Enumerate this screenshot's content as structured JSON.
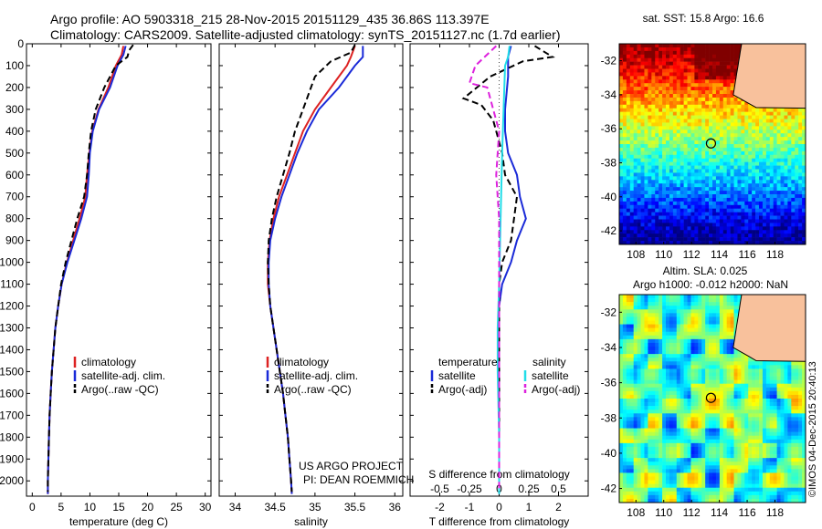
{
  "header": {
    "line1": "Argo profile: AO 5903318_215 28-Nov-2015 20151129_435 36.86S 113.397E",
    "line2": "Climatology: CARS2009. Satellite-adjusted climatology: synTS_20151127.nc (1.7d earlier)"
  },
  "colors": {
    "climatology": "#dd2222",
    "satellite": "#1a2ad8",
    "argo": "#000000",
    "sal_satellite": "#22dde8",
    "sal_argo": "#dd22dd",
    "land": "#f8c19c"
  },
  "credit": "©IMOS 04-Dec-2015 20:40:13",
  "project": {
    "line1": "US ARGO PROJECT",
    "line2": "PI: DEAN ROEMMICH"
  },
  "chart_data": [
    {
      "type": "line",
      "xlabel": "temperature (deg C)",
      "ylabel": "",
      "xlim": [
        -1,
        31
      ],
      "ylim": [
        2070,
        0
      ],
      "xticks": [
        "0",
        "5",
        "10",
        "15",
        "20",
        "25",
        "30"
      ],
      "yticks": [
        "0",
        "100",
        "200",
        "300",
        "400",
        "500",
        "600",
        "700",
        "800",
        "900",
        "1000",
        "1100",
        "1200",
        "1300",
        "1400",
        "1500",
        "1600",
        "1700",
        "1800",
        "1900",
        "2000"
      ],
      "legend": [
        "climatology",
        "satellite-adj. clim.",
        "Argo(..raw -QC)"
      ],
      "series": [
        {
          "name": "climatology",
          "style": "solid",
          "color": "#dd2222",
          "points": [
            [
              15.8,
              10
            ],
            [
              15.5,
              50
            ],
            [
              14.5,
              100
            ],
            [
              13.2,
              200
            ],
            [
              11.5,
              300
            ],
            [
              10.4,
              400
            ],
            [
              9.9,
              500
            ],
            [
              9.5,
              600
            ],
            [
              9.2,
              700
            ],
            [
              8.2,
              800
            ],
            [
              7.1,
              900
            ],
            [
              6.0,
              1000
            ],
            [
              5.1,
              1100
            ],
            [
              4.5,
              1200
            ],
            [
              4.0,
              1300
            ],
            [
              3.7,
              1400
            ],
            [
              3.4,
              1500
            ],
            [
              3.2,
              1600
            ],
            [
              3.0,
              1700
            ],
            [
              2.9,
              1800
            ],
            [
              2.8,
              1900
            ],
            [
              2.7,
              2000
            ],
            [
              2.7,
              2060
            ]
          ]
        },
        {
          "name": "satellite-adj. clim.",
          "style": "solid",
          "color": "#1a2ad8",
          "points": [
            [
              16.2,
              10
            ],
            [
              15.8,
              50
            ],
            [
              14.8,
              100
            ],
            [
              13.5,
              200
            ],
            [
              11.6,
              300
            ],
            [
              10.5,
              400
            ],
            [
              10.0,
              500
            ],
            [
              9.8,
              600
            ],
            [
              9.5,
              700
            ],
            [
              8.5,
              800
            ],
            [
              7.3,
              900
            ],
            [
              6.1,
              1000
            ],
            [
              5.1,
              1100
            ],
            [
              4.5,
              1200
            ],
            [
              4.0,
              1300
            ],
            [
              3.7,
              1400
            ],
            [
              3.4,
              1500
            ],
            [
              3.2,
              1600
            ],
            [
              3.0,
              1700
            ],
            [
              2.9,
              1800
            ],
            [
              2.8,
              1900
            ],
            [
              2.7,
              2000
            ],
            [
              2.7,
              2060
            ]
          ]
        },
        {
          "name": "Argo(..raw -QC)",
          "style": "dashed",
          "color": "#000000",
          "points": [
            [
              17.5,
              5
            ],
            [
              16.8,
              30
            ],
            [
              16.5,
              60
            ],
            [
              14.5,
              100
            ],
            [
              12.5,
              200
            ],
            [
              11.0,
              300
            ],
            [
              10.2,
              400
            ],
            [
              9.8,
              500
            ],
            [
              9.5,
              600
            ],
            [
              9.0,
              700
            ],
            [
              7.8,
              800
            ],
            [
              6.8,
              900
            ],
            [
              5.8,
              1000
            ],
            [
              5.0,
              1100
            ],
            [
              4.5,
              1200
            ],
            [
              4.0,
              1300
            ],
            [
              3.7,
              1400
            ],
            [
              3.4,
              1500
            ],
            [
              3.2,
              1600
            ],
            [
              3.0,
              1700
            ],
            [
              2.9,
              1800
            ],
            [
              2.8,
              1900
            ],
            [
              2.7,
              2000
            ],
            [
              2.7,
              2050
            ]
          ]
        }
      ]
    },
    {
      "type": "line",
      "xlabel": "salinity",
      "xlim": [
        33.8,
        36.1
      ],
      "ylim": [
        2070,
        0
      ],
      "xticks": [
        "34",
        "34.5",
        "35",
        "35.5",
        "36"
      ],
      "legend": [
        "climatology",
        "satellite-adj. clim.",
        "Argo(..raw -QC)"
      ],
      "series": [
        {
          "name": "climatology",
          "style": "solid",
          "color": "#dd2222",
          "points": [
            [
              35.5,
              10
            ],
            [
              35.45,
              60
            ],
            [
              35.4,
              100
            ],
            [
              35.2,
              200
            ],
            [
              35.0,
              300
            ],
            [
              34.85,
              400
            ],
            [
              34.75,
              500
            ],
            [
              34.65,
              600
            ],
            [
              34.55,
              700
            ],
            [
              34.48,
              800
            ],
            [
              34.43,
              900
            ],
            [
              34.41,
              1000
            ],
            [
              34.41,
              1100
            ],
            [
              34.44,
              1200
            ],
            [
              34.48,
              1300
            ],
            [
              34.52,
              1400
            ],
            [
              34.56,
              1500
            ],
            [
              34.6,
              1600
            ],
            [
              34.63,
              1700
            ],
            [
              34.66,
              1800
            ],
            [
              34.68,
              1900
            ],
            [
              34.7,
              2000
            ],
            [
              34.71,
              2060
            ]
          ]
        },
        {
          "name": "satellite-adj. clim.",
          "style": "solid",
          "color": "#1a2ad8",
          "points": [
            [
              35.6,
              10
            ],
            [
              35.6,
              60
            ],
            [
              35.5,
              100
            ],
            [
              35.3,
              200
            ],
            [
              35.05,
              300
            ],
            [
              34.9,
              400
            ],
            [
              34.78,
              500
            ],
            [
              34.68,
              600
            ],
            [
              34.58,
              700
            ],
            [
              34.5,
              800
            ],
            [
              34.44,
              900
            ],
            [
              34.42,
              1000
            ],
            [
              34.42,
              1100
            ],
            [
              34.44,
              1200
            ],
            [
              34.48,
              1300
            ],
            [
              34.52,
              1400
            ],
            [
              34.56,
              1500
            ],
            [
              34.6,
              1600
            ],
            [
              34.63,
              1700
            ],
            [
              34.66,
              1800
            ],
            [
              34.68,
              1900
            ],
            [
              34.7,
              2000
            ],
            [
              34.71,
              2060
            ]
          ]
        },
        {
          "name": "Argo(..raw -QC)",
          "style": "dashed",
          "color": "#000000",
          "points": [
            [
              35.5,
              5
            ],
            [
              35.45,
              40
            ],
            [
              35.2,
              80
            ],
            [
              35.0,
              150
            ],
            [
              34.95,
              200
            ],
            [
              34.85,
              300
            ],
            [
              34.75,
              400
            ],
            [
              34.68,
              500
            ],
            [
              34.6,
              600
            ],
            [
              34.52,
              700
            ],
            [
              34.46,
              800
            ],
            [
              34.42,
              900
            ],
            [
              34.41,
              1000
            ],
            [
              34.42,
              1100
            ],
            [
              34.44,
              1200
            ],
            [
              34.48,
              1300
            ],
            [
              34.52,
              1400
            ],
            [
              34.56,
              1500
            ],
            [
              34.6,
              1600
            ],
            [
              34.63,
              1700
            ],
            [
              34.66,
              1800
            ],
            [
              34.68,
              1900
            ],
            [
              34.7,
              2000
            ],
            [
              34.71,
              2050
            ]
          ]
        }
      ]
    },
    {
      "type": "line",
      "xlabel": "T difference from climatology",
      "top_xlabel": "S difference from climatology",
      "xlim": [
        -3,
        3
      ],
      "ylim": [
        2070,
        0
      ],
      "xticks": [
        "-2",
        "-1",
        "0",
        "1",
        "2"
      ],
      "top_xticks": [
        "-0.5",
        "-0.25",
        "0",
        "0.25",
        "0.5"
      ],
      "legend_temperature_title": "temperature",
      "legend_salinity_title": "salinity",
      "legend_temperature": [
        "satellite",
        "Argo(-adj)"
      ],
      "legend_salinity": [
        "satellite",
        "Argo(-adj)"
      ],
      "series": [
        {
          "name": "satellite",
          "group": "temperature",
          "style": "solid",
          "color": "#1a2ad8",
          "points": [
            [
              0.4,
              10
            ],
            [
              0.3,
              60
            ],
            [
              0.3,
              150
            ],
            [
              0.2,
              300
            ],
            [
              0.2,
              400
            ],
            [
              0.3,
              500
            ],
            [
              0.6,
              600
            ],
            [
              0.7,
              700
            ],
            [
              0.9,
              800
            ],
            [
              0.6,
              900
            ],
            [
              0.4,
              1000
            ],
            [
              0.1,
              1100
            ],
            [
              0.0,
              1200
            ],
            [
              0.0,
              1400
            ],
            [
              0.0,
              1800
            ],
            [
              0.0,
              2060
            ]
          ]
        },
        {
          "name": "Argo(-adj)",
          "group": "temperature",
          "style": "dashed",
          "color": "#000000",
          "points": [
            [
              1.2,
              10
            ],
            [
              1.8,
              60
            ],
            [
              0.8,
              80
            ],
            [
              -0.3,
              150
            ],
            [
              -1.2,
              250
            ],
            [
              -0.6,
              280
            ],
            [
              -0.2,
              350
            ],
            [
              -0.1,
              400
            ],
            [
              0.1,
              500
            ],
            [
              0.2,
              600
            ],
            [
              0.6,
              700
            ],
            [
              0.5,
              800
            ],
            [
              0.4,
              900
            ],
            [
              0.1,
              1000
            ],
            [
              0.0,
              1100
            ],
            [
              0.0,
              1300
            ],
            [
              0.0,
              1600
            ],
            [
              0.0,
              2050
            ]
          ]
        },
        {
          "name": "satellite",
          "group": "salinity",
          "style": "solid",
          "color": "#22dde8",
          "points": [
            [
              0.35,
              10
            ],
            [
              0.3,
              60
            ],
            [
              0.2,
              100
            ],
            [
              0.15,
              300
            ],
            [
              0.1,
              500
            ],
            [
              0.05,
              800
            ],
            [
              0.0,
              1100
            ],
            [
              -0.05,
              1300
            ],
            [
              -0.05,
              1500
            ],
            [
              0.0,
              1800
            ],
            [
              0.0,
              2060
            ]
          ]
        },
        {
          "name": "Argo(-adj)",
          "group": "salinity",
          "style": "dashed",
          "color": "#dd22dd",
          "points": [
            [
              -0.1,
              10
            ],
            [
              -0.8,
              100
            ],
            [
              -1.0,
              180
            ],
            [
              -0.4,
              200
            ],
            [
              -0.2,
              300
            ],
            [
              0.0,
              400
            ],
            [
              -0.1,
              600
            ],
            [
              0.0,
              800
            ],
            [
              0.0,
              1000
            ],
            [
              0.0,
              1400
            ],
            [
              0.0,
              2050
            ]
          ]
        }
      ]
    },
    {
      "type": "heatmap",
      "title": "sat. SST: 15.8 Argo: 16.6",
      "xlim": [
        106.8,
        120.2
      ],
      "ylim": [
        -42.8,
        -31.0
      ],
      "xticks": [
        "108",
        "110",
        "112",
        "114",
        "116",
        "118"
      ],
      "yticks": [
        "-32",
        "-34",
        "-36",
        "-38",
        "-40",
        "-42"
      ],
      "marker": {
        "lon": 113.397,
        "lat": -36.86
      },
      "scale": "jet"
    },
    {
      "type": "heatmap",
      "title": "Altim. SLA: 0.025",
      "subtitle": "Argo h1000: -0.012 h2000: NaN",
      "xlim": [
        106.8,
        120.2
      ],
      "ylim": [
        -42.8,
        -31.0
      ],
      "xticks": [
        "108",
        "110",
        "112",
        "114",
        "116",
        "118"
      ],
      "yticks": [
        "-32",
        "-34",
        "-36",
        "-38",
        "-40",
        "-42"
      ],
      "marker": {
        "lon": 113.397,
        "lat": -36.86
      },
      "scale": "jet"
    }
  ]
}
